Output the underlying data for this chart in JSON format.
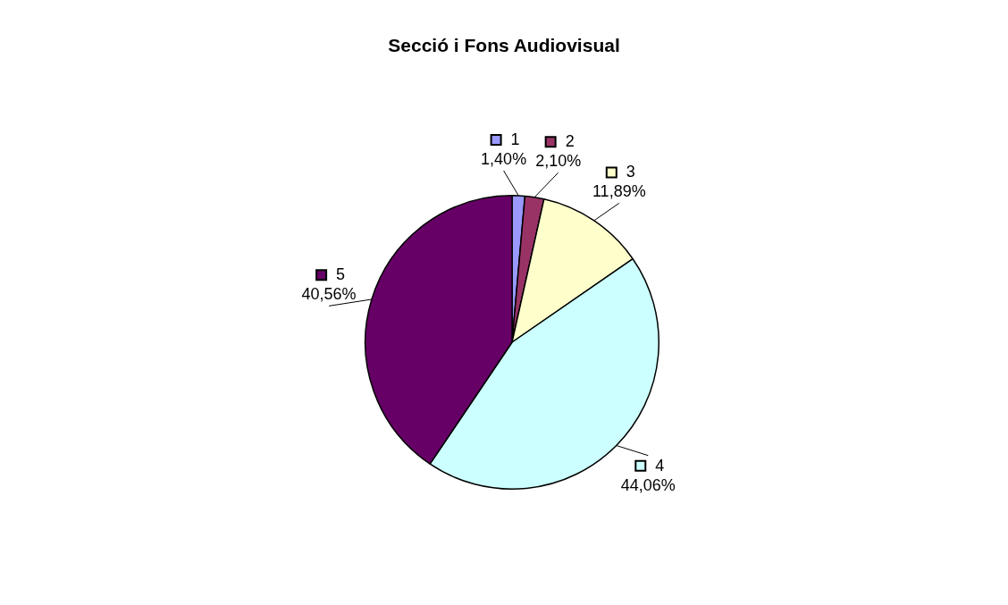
{
  "chart_data": {
    "type": "pie",
    "title": "Secció i Fons Audiovisual",
    "categories": [
      "1",
      "2",
      "3",
      "4",
      "5"
    ],
    "values": [
      1.4,
      2.1,
      11.89,
      44.06,
      40.56
    ],
    "value_labels": [
      "1,40%",
      "2,10%",
      "11,89%",
      "44,06%",
      "40,56%"
    ],
    "colors": [
      "#9999ff",
      "#993366",
      "#ffffcc",
      "#ccffff",
      "#660066"
    ],
    "legend": "top left"
  }
}
